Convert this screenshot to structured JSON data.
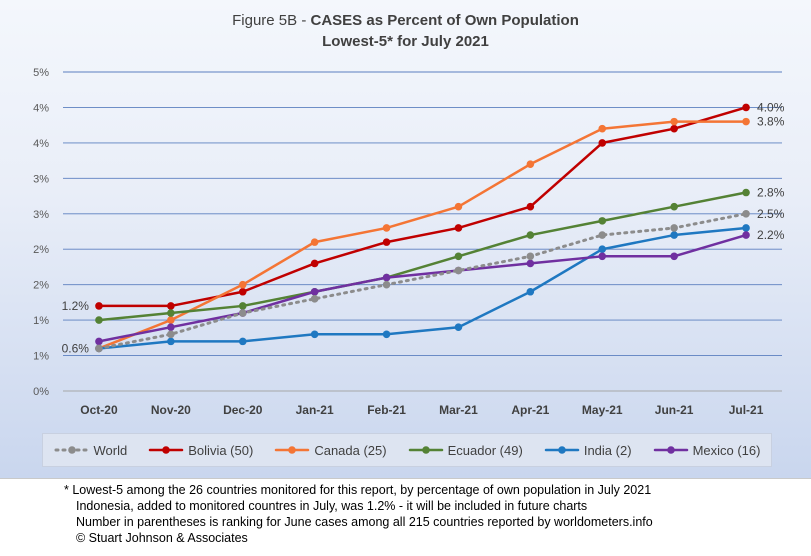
{
  "title": {
    "prefix": "Figure 5B - ",
    "main": "CASES as Percent of Own Population",
    "subtitle": "Lowest-5* for July 2021"
  },
  "chart_data": {
    "type": "line",
    "categories": [
      "Oct-20",
      "Nov-20",
      "Dec-20",
      "Jan-21",
      "Feb-21",
      "Mar-21",
      "Apr-21",
      "May-21",
      "Jun-21",
      "Jul-21"
    ],
    "y_tick_labels": [
      "0%",
      "1%",
      "1%",
      "2%",
      "2%",
      "3%",
      "3%",
      "4%",
      "4%",
      "5%"
    ],
    "ylim": [
      0,
      4.5
    ],
    "y_tick_step": 0.5,
    "grid": true,
    "legend_position": "bottom",
    "series": [
      {
        "name": "World",
        "color": "#8c8c8c",
        "dashed": true,
        "values": [
          0.6,
          0.8,
          1.1,
          1.3,
          1.5,
          1.7,
          1.9,
          2.2,
          2.3,
          2.5
        ]
      },
      {
        "name": "Bolivia (50)",
        "color": "#c00000",
        "dashed": false,
        "values": [
          1.2,
          1.2,
          1.4,
          1.8,
          2.1,
          2.3,
          2.6,
          3.5,
          3.7,
          4.0
        ]
      },
      {
        "name": "Canada (25)",
        "color": "#f47535",
        "dashed": false,
        "values": [
          0.6,
          1.0,
          1.5,
          2.1,
          2.3,
          2.6,
          3.2,
          3.7,
          3.8,
          3.8
        ]
      },
      {
        "name": "Ecuador (49)",
        "color": "#548235",
        "dashed": false,
        "values": [
          1.0,
          1.1,
          1.2,
          1.4,
          1.6,
          1.9,
          2.2,
          2.4,
          2.6,
          2.8
        ]
      },
      {
        "name": "India (2)",
        "color": "#1f78c1",
        "dashed": false,
        "values": [
          0.6,
          0.7,
          0.7,
          0.8,
          0.8,
          0.9,
          1.4,
          2.0,
          2.2,
          2.3
        ]
      },
      {
        "name": "Mexico (16)",
        "color": "#7030a0",
        "dashed": false,
        "values": [
          0.7,
          0.9,
          1.1,
          1.4,
          1.6,
          1.7,
          1.8,
          1.9,
          1.9,
          2.2
        ]
      }
    ],
    "annotations": [
      {
        "text": "1.2%",
        "series": "Bolivia (50)",
        "point": 0,
        "side": "left"
      },
      {
        "text": "0.6%",
        "series": "India (2)",
        "point": 0,
        "side": "left"
      },
      {
        "text": "4.0%",
        "series": "Bolivia (50)",
        "point": 9,
        "side": "right"
      },
      {
        "text": "3.8%",
        "series": "Canada (25)",
        "point": 9,
        "side": "right"
      },
      {
        "text": "2.8%",
        "series": "Ecuador (49)",
        "point": 9,
        "side": "right"
      },
      {
        "text": "2.5%",
        "series": "World",
        "point": 9,
        "side": "right"
      },
      {
        "text": "2.2%",
        "series": "Mexico (16)",
        "point": 9,
        "side": "right"
      }
    ]
  },
  "legend": [
    "World",
    "Bolivia (50)",
    "Canada (25)",
    "Ecuador (49)",
    "India (2)",
    "Mexico (16)"
  ],
  "footnote": {
    "line1": "* Lowest-5 among the 26 countries monitored for this report, by percentage of own population in July 2021",
    "line2": "Indonesia, added to monitored countres in July, was 1.2% -  it will be included in future charts",
    "line3": "Number in parentheses is ranking for June cases among all 215 countries reported by worldometers.info",
    "line4": "© Stuart Johnson & Associates"
  }
}
